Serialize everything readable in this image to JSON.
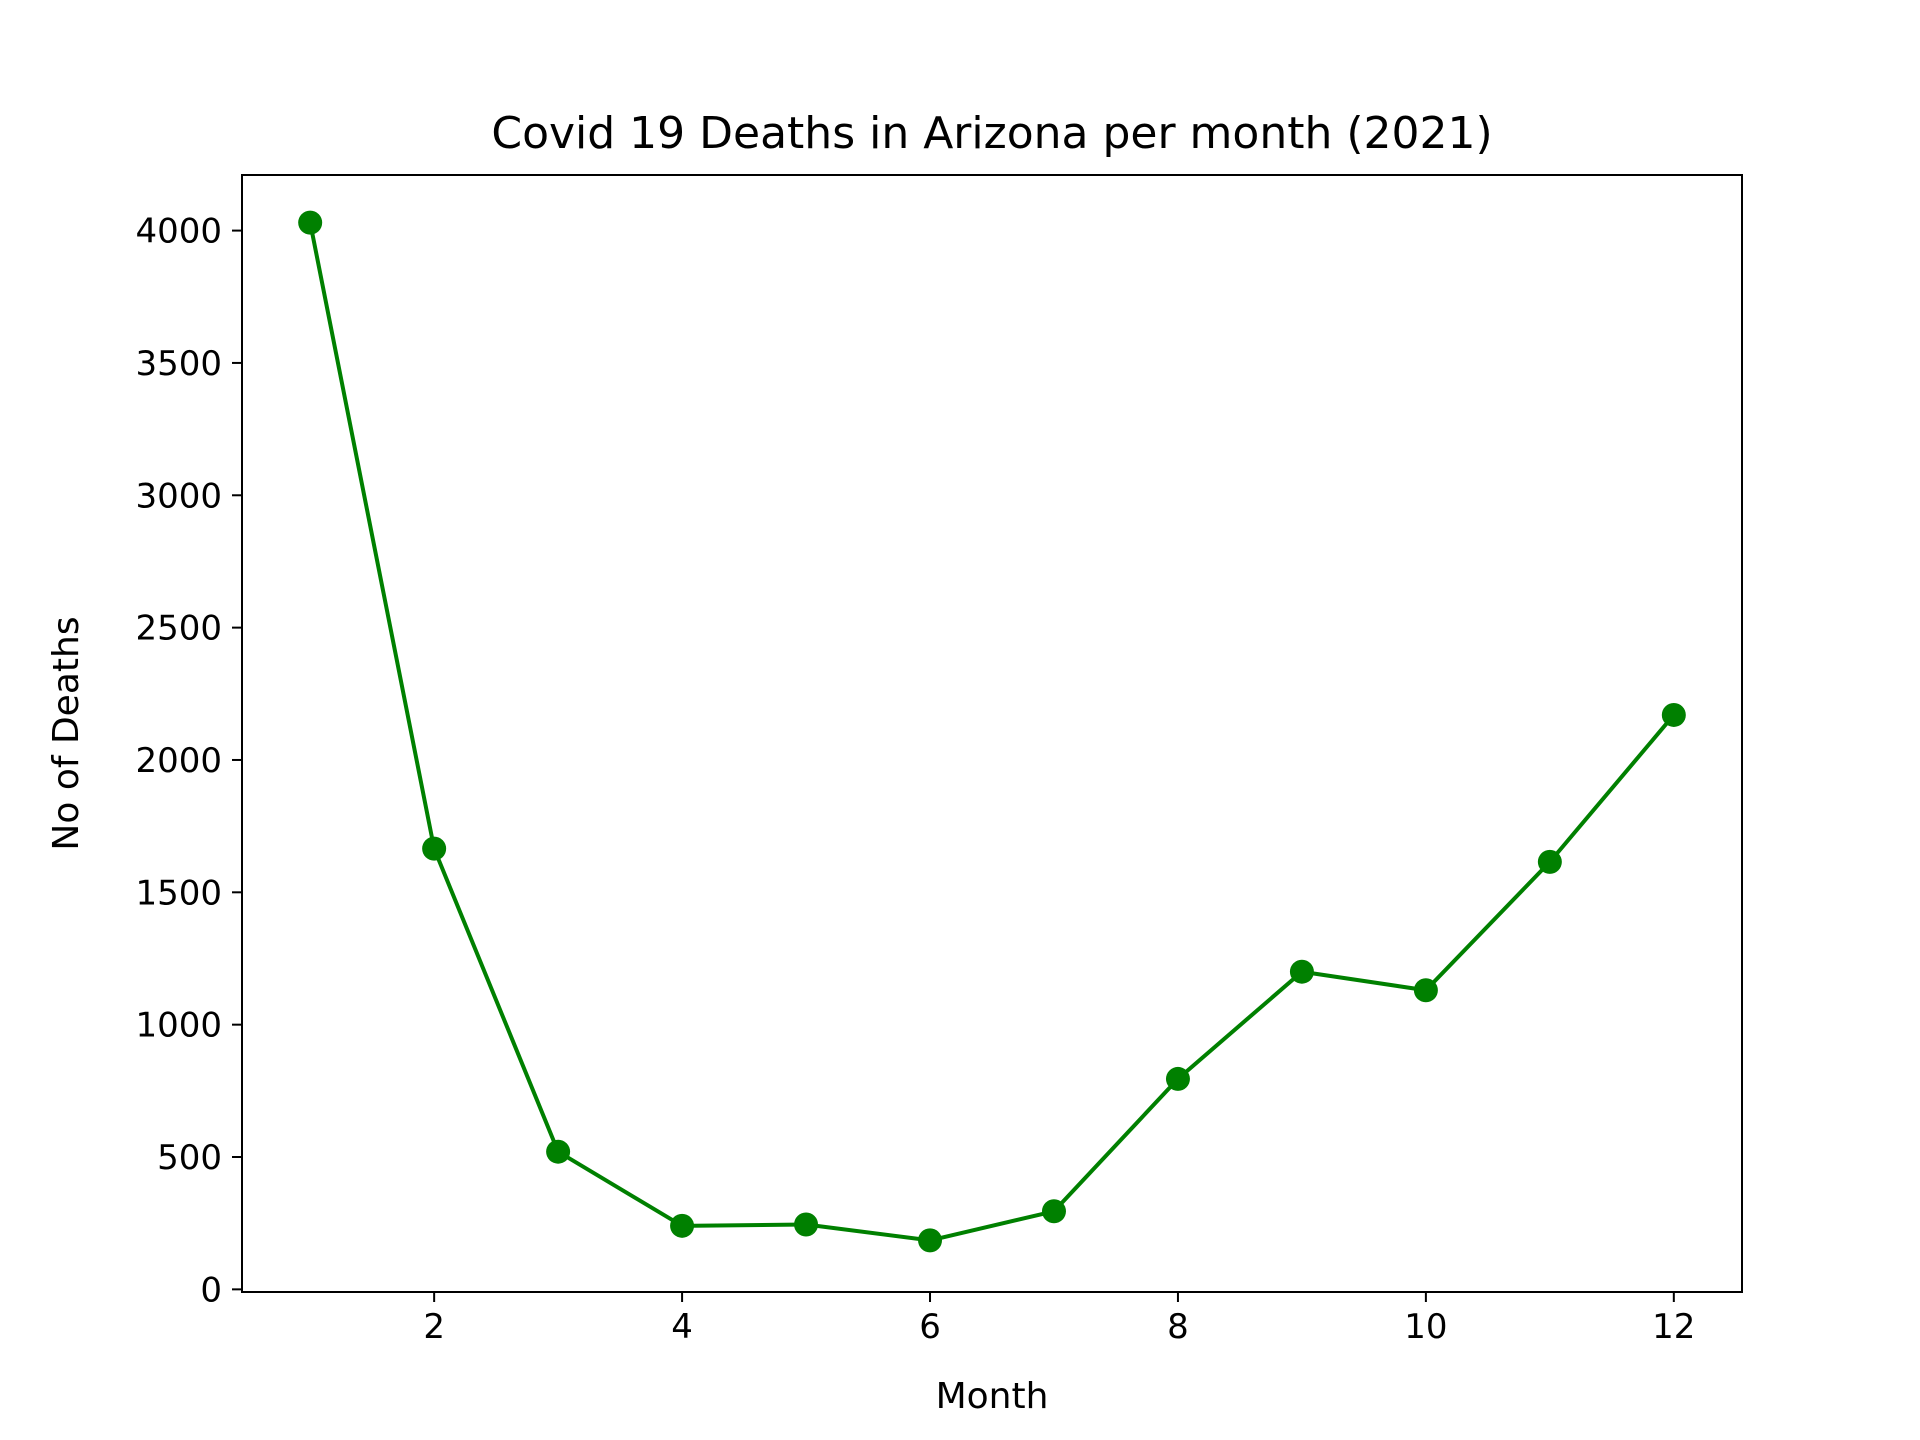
{
  "chart_data": {
    "type": "line",
    "title": "Covid 19 Deaths in Arizona per month (2021)",
    "xlabel": "Month",
    "ylabel": "No of Deaths",
    "x": [
      1,
      2,
      3,
      4,
      5,
      6,
      7,
      8,
      9,
      10,
      11,
      12
    ],
    "series": [
      {
        "values": [
          4030,
          1665,
          520,
          240,
          245,
          185,
          295,
          795,
          1200,
          1130,
          1615,
          2170
        ],
        "color": "#008000",
        "marker": "circle"
      }
    ],
    "xticks": [
      2,
      4,
      6,
      8,
      10,
      12
    ],
    "yticks": [
      0,
      500,
      1000,
      1500,
      2000,
      2500,
      3000,
      3500,
      4000
    ],
    "xlim": [
      0.45,
      12.55
    ],
    "ylim": [
      -10,
      4210
    ],
    "grid": false
  }
}
